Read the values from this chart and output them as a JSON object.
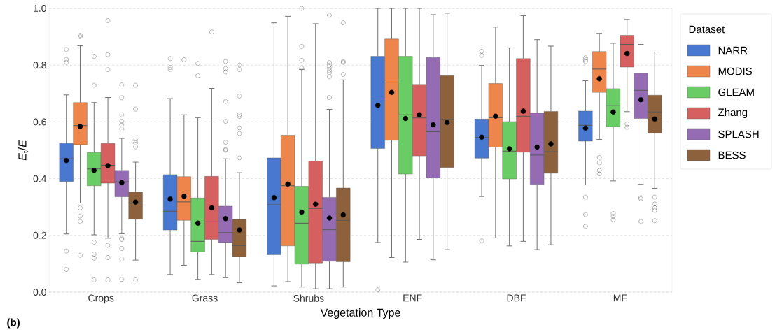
{
  "chart_data": {
    "type": "box",
    "xlabel": "Vegetation Type",
    "ylabel": "*E*$_{t}$/*E*",
    "legend_title": "Dataset",
    "annotations": [
      "(b)"
    ],
    "categories": [
      "Crops",
      "Grass",
      "Shrubs",
      "ENF",
      "DBF",
      "MF"
    ],
    "ylim": [
      0,
      1
    ],
    "yticks": [
      {
        "value": 0,
        "label": "0.0"
      },
      0.2,
      0.4,
      0.6,
      0.8,
      {
        "value": 1,
        "label": "1.0"
      }
    ],
    "grid": "y",
    "legend": "right",
    "series": [
      {
        "name": "NARR",
        "color": "#4878d0",
        "boxes": [
          {
            "low": 0.205,
            "q1": 0.39,
            "median": 0.47,
            "q3": 0.524,
            "high": 0.695,
            "mean": 0.464,
            "outliers": [
              0.855,
              0.82,
              0.81,
              0.145,
              0.08
            ]
          },
          {
            "low": 0.062,
            "q1": 0.219,
            "median": 0.285,
            "q3": 0.414,
            "high": 0.682,
            "mean": 0.328,
            "outliers": [
              0.823,
              0.792,
              0.785
            ]
          },
          {
            "low": 0.022,
            "q1": 0.132,
            "median": 0.308,
            "q3": 0.473,
            "high": 0.949,
            "mean": 0.333
          },
          {
            "low": 0.175,
            "q1": 0.506,
            "median": 0.681,
            "q3": 0.831,
            "high": 1.0,
            "mean": 0.658,
            "outliers": [
              0.008
            ]
          },
          {
            "low": 0.337,
            "q1": 0.472,
            "median": 0.545,
            "q3": 0.61,
            "high": 0.799,
            "mean": 0.546,
            "outliers": [
              0.849,
              0.834,
              0.181
            ]
          },
          {
            "low": 0.378,
            "q1": 0.532,
            "median": 0.588,
            "q3": 0.638,
            "high": 0.745,
            "mean": 0.578,
            "outliers": [
              0.826,
              0.819,
              0.813,
              0.335,
              0.273,
              0.232
            ]
          }
        ]
      },
      {
        "name": "MODIS",
        "color": "#ee854a",
        "boxes": [
          {
            "low": 0.314,
            "q1": 0.52,
            "median": 0.587,
            "q3": 0.668,
            "high": 0.868,
            "mean": 0.584,
            "outliers": [
              0.905,
              0.9,
              0.297,
              0.268,
              0.249,
              0.13
            ]
          },
          {
            "low": 0.095,
            "q1": 0.253,
            "median": 0.318,
            "q3": 0.407,
            "high": 0.625,
            "mean": 0.338,
            "outliers": [
              0.819
            ]
          },
          {
            "low": 0.037,
            "q1": 0.163,
            "median": 0.375,
            "q3": 0.553,
            "high": 0.972,
            "mean": 0.381
          },
          {
            "low": 0.122,
            "q1": 0.535,
            "median": 0.74,
            "q3": 0.892,
            "high": 1.0,
            "mean": 0.704
          },
          {
            "low": 0.191,
            "q1": 0.511,
            "median": 0.615,
            "q3": 0.735,
            "high": 0.934,
            "mean": 0.62
          },
          {
            "low": 0.538,
            "q1": 0.704,
            "median": 0.786,
            "q3": 0.848,
            "high": 0.912,
            "mean": 0.752,
            "outliers": [
              0.475,
              0.456,
              0.429,
              0.417
            ]
          }
        ]
      },
      {
        "name": "GLEAM",
        "color": "#6acc64",
        "boxes": [
          {
            "low": 0.202,
            "q1": 0.375,
            "median": 0.434,
            "q3": 0.492,
            "high": 0.668,
            "mean": 0.429,
            "outliers": [
              0.831,
              0.729,
              0.176,
              0.134,
              0.12,
              0.043
            ]
          },
          {
            "low": 0.045,
            "q1": 0.142,
            "median": 0.179,
            "q3": 0.332,
            "high": 0.615,
            "mean": 0.243,
            "outliers": [
              0.806,
              0.763
            ]
          },
          {
            "low": 0.018,
            "q1": 0.099,
            "median": 0.243,
            "q3": 0.373,
            "high": 0.785,
            "mean": 0.282,
            "outliers": [
              1.0,
              0.866,
              0.817,
              0.79
            ]
          },
          {
            "low": 0.106,
            "q1": 0.416,
            "median": 0.625,
            "q3": 0.831,
            "high": 1.0,
            "mean": 0.612
          },
          {
            "low": 0.163,
            "q1": 0.399,
            "median": 0.497,
            "q3": 0.601,
            "high": 0.861,
            "mean": 0.505
          },
          {
            "low": 0.392,
            "q1": 0.583,
            "median": 0.657,
            "q3": 0.717,
            "high": 0.877,
            "mean": 0.635,
            "outliers": [
              0.277,
              0.267,
              0.255
            ]
          }
        ]
      },
      {
        "name": "Zhang",
        "color": "#d65f5f",
        "boxes": [
          {
            "low": 0.19,
            "q1": 0.384,
            "median": 0.447,
            "q3": 0.524,
            "high": 0.686,
            "mean": 0.446,
            "outliers": [
              0.957,
              0.837,
              0.784,
              0.165,
              0.122,
              0.043
            ]
          },
          {
            "low": 0.062,
            "q1": 0.186,
            "median": 0.248,
            "q3": 0.408,
            "high": 0.718,
            "mean": 0.297,
            "outliers": [
              0.917
            ]
          },
          {
            "low": 0.012,
            "q1": 0.103,
            "median": 0.295,
            "q3": 0.462,
            "high": 0.946,
            "mean": 0.31
          },
          {
            "low": 0.186,
            "q1": 0.48,
            "median": 0.614,
            "q3": 0.732,
            "high": 1.0,
            "mean": 0.625
          },
          {
            "low": 0.179,
            "q1": 0.493,
            "median": 0.62,
            "q3": 0.823,
            "high": 0.974,
            "mean": 0.638
          },
          {
            "low": 0.636,
            "q1": 0.793,
            "median": 0.873,
            "q3": 0.905,
            "high": 0.961,
            "mean": 0.841,
            "outliers": [
              0.593,
              0.581
            ]
          }
        ]
      },
      {
        "name": "SPLASH",
        "color": "#956cb4",
        "boxes": [
          {
            "low": 0.206,
            "q1": 0.336,
            "median": 0.389,
            "q3": 0.429,
            "high": 0.542,
            "mean": 0.386,
            "outliers": [
              0.73,
              0.685,
              0.625,
              0.602,
              0.59,
              0.575,
              0.19,
              0.186,
              0.154,
              0.117,
              0.045
            ]
          },
          {
            "low": 0.051,
            "q1": 0.175,
            "median": 0.21,
            "q3": 0.303,
            "high": 0.47,
            "mean": 0.259,
            "outliers": [
              0.813,
              0.788,
              0.776,
              0.672,
              0.602,
              0.528,
              0.503,
              0.5
            ]
          },
          {
            "low": 0.012,
            "q1": 0.109,
            "median": 0.22,
            "q3": 0.334,
            "high": 0.644,
            "mean": 0.261,
            "outliers": [
              0.976,
              0.809,
              0.799,
              0.79,
              0.781,
              0.773,
              0.759,
              0.686
            ]
          },
          {
            "low": 0.114,
            "q1": 0.403,
            "median": 0.565,
            "q3": 0.827,
            "high": 0.978,
            "mean": 0.59
          },
          {
            "low": 0.15,
            "q1": 0.38,
            "median": 0.483,
            "q3": 0.631,
            "high": 0.89,
            "mean": 0.511
          },
          {
            "low": 0.38,
            "q1": 0.612,
            "median": 0.711,
            "q3": 0.772,
            "high": 0.873,
            "mean": 0.678,
            "outliers": [
              0.333,
              0.329,
              0.249
            ]
          }
        ]
      },
      {
        "name": "BESS",
        "color": "#8c613c",
        "boxes": [
          {
            "low": 0.113,
            "q1": 0.257,
            "median": 0.314,
            "q3": 0.353,
            "high": 0.458,
            "mean": 0.317,
            "outliers": [
              0.729,
              0.645,
              0.536,
              0.526,
              0.512,
              0.043
            ]
          },
          {
            "low": 0.033,
            "q1": 0.125,
            "median": 0.164,
            "q3": 0.256,
            "high": 0.421,
            "mean": 0.219,
            "outliers": [
              0.8,
              0.784,
              0.691,
              0.625,
              0.619,
              0.579,
              0.559,
              0.473
            ]
          },
          {
            "low": 0.018,
            "q1": 0.107,
            "median": 0.253,
            "q3": 0.367,
            "high": 0.748,
            "mean": 0.272,
            "outliers": [
              0.949,
              0.813,
              0.81,
              0.767
            ]
          },
          {
            "low": 0.15,
            "q1": 0.439,
            "median": 0.609,
            "q3": 0.763,
            "high": 0.983,
            "mean": 0.598
          },
          {
            "low": 0.167,
            "q1": 0.419,
            "median": 0.495,
            "q3": 0.637,
            "high": 0.867,
            "mean": 0.522
          },
          {
            "low": 0.366,
            "q1": 0.56,
            "median": 0.635,
            "q3": 0.694,
            "high": 0.846,
            "mean": 0.61,
            "outliers": [
              0.335,
              0.311,
              0.297,
              0.288,
              0.252
            ]
          }
        ]
      }
    ]
  }
}
